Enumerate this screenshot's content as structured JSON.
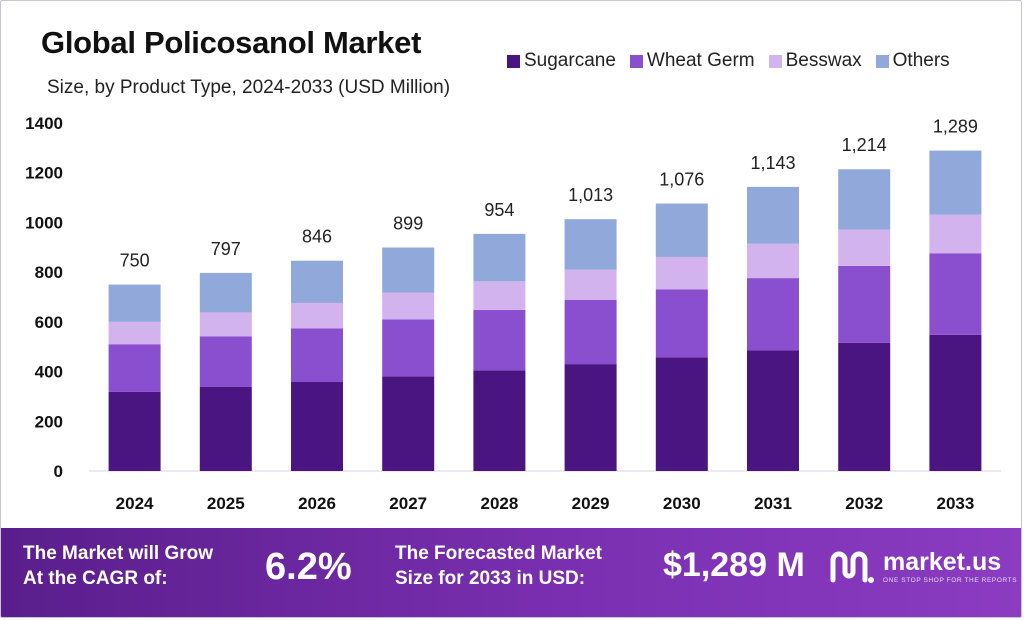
{
  "header": {
    "title": "Global Policosanol Market",
    "subtitle": "Size, by Product Type, 2024-2033 (USD Million)"
  },
  "footer": {
    "cagr_label_line1": "The Market will Grow",
    "cagr_label_line2": "At the CAGR of:",
    "cagr_value": "6.2%",
    "forecast_label_line1": "The Forecasted Market",
    "forecast_label_line2": "Size for 2033 in USD:",
    "forecast_value": "$1,289 M",
    "brand_name": "market.us",
    "brand_tagline": "ONE STOP SHOP FOR THE REPORTS"
  },
  "chart_data": {
    "type": "bar",
    "stacked": true,
    "title": "Global Policosanol Market",
    "subtitle": "Size, by Product Type, 2024-2033 (USD Million)",
    "categories": [
      "2024",
      "2025",
      "2026",
      "2027",
      "2028",
      "2029",
      "2030",
      "2031",
      "2032",
      "2033"
    ],
    "totals": [
      750,
      797,
      846,
      899,
      954,
      1013,
      1076,
      1143,
      1214,
      1289
    ],
    "total_labels": [
      "750",
      "797",
      "846",
      "899",
      "954",
      "1,013",
      "1,076",
      "1,143",
      "1,214",
      "1,289"
    ],
    "series": [
      {
        "name": "Sugarcane",
        "color": "#4a1580",
        "values": [
          318,
          338,
          358,
          381,
          405,
          430,
          457,
          485,
          516,
          548
        ]
      },
      {
        "name": "Wheat Germ",
        "color": "#8a4fcf",
        "values": [
          192,
          204,
          216,
          229,
          243,
          258,
          274,
          291,
          309,
          328
        ]
      },
      {
        "name": "Besswax",
        "color": "#d3b3ee",
        "values": [
          90,
          96,
          102,
          108,
          115,
          122,
          130,
          138,
          146,
          155
        ]
      },
      {
        "name": "Others",
        "color": "#90a9da",
        "values": [
          150,
          159,
          170,
          181,
          191,
          203,
          215,
          229,
          243,
          258
        ]
      }
    ],
    "yticks": [
      0,
      200,
      400,
      600,
      800,
      1000,
      1200,
      1400
    ],
    "ylim": [
      0,
      1400
    ],
    "xlabel": "",
    "ylabel": "",
    "grid": false,
    "legend_position": "top-right"
  }
}
